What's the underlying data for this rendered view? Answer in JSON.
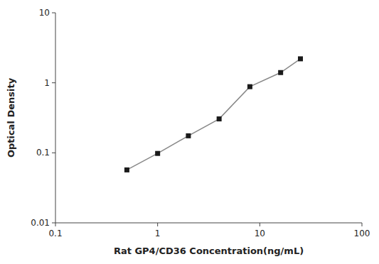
{
  "chart_data": {
    "type": "line",
    "xlabel": "Rat GP4/CD36 Concentration(ng/mL)",
    "ylabel": "Optical Density",
    "x": [
      0.5,
      1.0,
      2.0,
      4.0,
      8.0,
      16.0,
      25.0
    ],
    "values": [
      0.057,
      0.098,
      0.175,
      0.305,
      0.88,
      1.4,
      2.2
    ],
    "xlim": [
      0.1,
      100
    ],
    "ylim": [
      0.01,
      10
    ],
    "xticks": [
      0.1,
      1,
      10,
      100
    ],
    "yticks": [
      0.01,
      0.1,
      1,
      10
    ],
    "log": true,
    "grid": false,
    "color": "#888888",
    "marker": "square"
  }
}
